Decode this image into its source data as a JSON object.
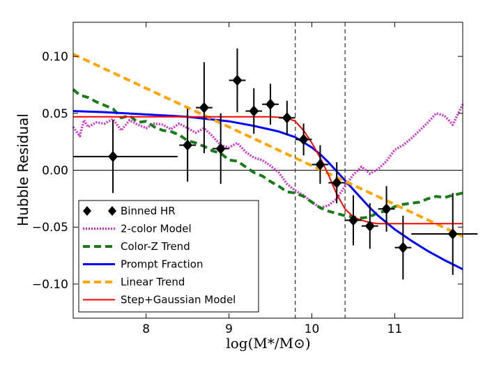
{
  "chart_data": {
    "type": "line",
    "xlabel": "log(M*/M⊙)",
    "ylabel": "Hubble Residual",
    "xlim": [
      7.12,
      11.82
    ],
    "ylim": [
      -0.13,
      0.13
    ],
    "x_ticks": [
      8,
      9,
      10,
      11
    ],
    "x_tick_labels": [
      "8",
      "9",
      "10",
      "11"
    ],
    "y_ticks": [
      0.1,
      0.05,
      0.0,
      -0.05,
      -0.1
    ],
    "y_tick_labels": [
      "0.10",
      "0.05",
      "0.00",
      "−0.05",
      "−0.10"
    ],
    "zero_line": 0,
    "vertical_lines": [
      9.8,
      10.4
    ],
    "legend_position": "lower-left",
    "binned_points": {
      "name": "Binned HR",
      "color": "#000000",
      "points": [
        {
          "x": 7.6,
          "y": 0.012,
          "xerr": [
            0.48,
            0.78
          ],
          "yerr": 0.032
        },
        {
          "x": 8.5,
          "y": 0.022,
          "xerr": [
            0.1,
            0.1
          ],
          "yerr": 0.032
        },
        {
          "x": 8.7,
          "y": 0.055,
          "xerr": [
            0.1,
            0.1
          ],
          "yerr": 0.04
        },
        {
          "x": 8.9,
          "y": 0.019,
          "xerr": [
            0.1,
            0.1
          ],
          "yerr": 0.031
        },
        {
          "x": 9.1,
          "y": 0.079,
          "xerr": [
            0.1,
            0.1
          ],
          "yerr": 0.028
        },
        {
          "x": 9.3,
          "y": 0.052,
          "xerr": [
            0.1,
            0.1
          ],
          "yerr": 0.02
        },
        {
          "x": 9.5,
          "y": 0.058,
          "xerr": [
            0.1,
            0.1
          ],
          "yerr": 0.018
        },
        {
          "x": 9.7,
          "y": 0.046,
          "xerr": [
            0.1,
            0.1
          ],
          "yerr": 0.015
        },
        {
          "x": 9.9,
          "y": 0.027,
          "xerr": [
            0.1,
            0.1
          ],
          "yerr": 0.014
        },
        {
          "x": 10.1,
          "y": 0.005,
          "xerr": [
            0.1,
            0.1
          ],
          "yerr": 0.017
        },
        {
          "x": 10.3,
          "y": -0.011,
          "xerr": [
            0.1,
            0.1
          ],
          "yerr": 0.018
        },
        {
          "x": 10.5,
          "y": -0.044,
          "xerr": [
            0.1,
            0.1
          ],
          "yerr": 0.022
        },
        {
          "x": 10.7,
          "y": -0.049,
          "xerr": [
            0.1,
            0.1
          ],
          "yerr": 0.02
        },
        {
          "x": 10.9,
          "y": -0.034,
          "xerr": [
            0.1,
            0.1
          ],
          "yerr": 0.02
        },
        {
          "x": 11.1,
          "y": -0.068,
          "xerr": [
            0.1,
            0.1
          ],
          "yerr": 0.028
        },
        {
          "x": 11.7,
          "y": -0.056,
          "xerr": [
            0.5,
            0.3
          ],
          "yerr": 0.036
        }
      ]
    },
    "series": [
      {
        "name": "2-color Model",
        "color": "#cc33cc",
        "style": "dotted",
        "x": [
          7.12,
          7.2,
          7.25,
          7.3,
          7.4,
          7.5,
          7.6,
          7.7,
          7.8,
          7.9,
          8.0,
          8.1,
          8.2,
          8.3,
          8.4,
          8.5,
          8.6,
          8.7,
          8.8,
          8.9,
          9.0,
          9.1,
          9.2,
          9.3,
          9.4,
          9.5,
          9.6,
          9.7,
          9.8,
          9.9,
          10.0,
          10.1,
          10.2,
          10.3,
          10.4,
          10.5,
          10.6,
          10.7,
          10.8,
          10.9,
          11.0,
          11.1,
          11.2,
          11.3,
          11.4,
          11.5,
          11.6,
          11.7,
          11.82
        ],
        "y": [
          0.038,
          0.03,
          0.044,
          0.038,
          0.042,
          0.041,
          0.045,
          0.035,
          0.044,
          0.04,
          0.037,
          0.041,
          0.04,
          0.036,
          0.041,
          0.037,
          0.033,
          0.037,
          0.03,
          0.022,
          0.02,
          0.024,
          0.016,
          0.011,
          0.009,
          0.004,
          -0.002,
          -0.012,
          -0.018,
          -0.022,
          -0.028,
          -0.033,
          -0.031,
          -0.025,
          -0.014,
          -0.004,
          0.003,
          -0.003,
          0.001,
          0.008,
          0.018,
          0.022,
          0.028,
          0.035,
          0.042,
          0.05,
          0.048,
          0.04,
          0.058
        ]
      },
      {
        "name": "Color-Z Trend",
        "color": "#1a7a1a",
        "style": "dashed",
        "x": [
          7.12,
          7.2,
          7.3,
          7.4,
          7.5,
          7.6,
          7.7,
          7.8,
          7.9,
          8.0,
          8.1,
          8.2,
          8.3,
          8.4,
          8.5,
          8.6,
          8.7,
          8.8,
          8.9,
          9.0,
          9.1,
          9.2,
          9.3,
          9.4,
          9.5,
          9.6,
          9.7,
          9.8,
          9.9,
          10.0,
          10.1,
          10.2,
          10.3,
          10.4,
          10.5,
          10.6,
          10.7,
          10.8,
          10.9,
          11.0,
          11.1,
          11.2,
          11.3,
          11.4,
          11.5,
          11.6,
          11.7,
          11.82
        ],
        "y": [
          0.071,
          0.066,
          0.064,
          0.06,
          0.057,
          0.054,
          0.046,
          0.048,
          0.042,
          0.043,
          0.038,
          0.035,
          0.034,
          0.031,
          0.026,
          0.024,
          0.021,
          0.017,
          0.015,
          0.009,
          0.008,
          0.003,
          -0.002,
          -0.005,
          -0.01,
          -0.014,
          -0.019,
          -0.02,
          -0.023,
          -0.028,
          -0.033,
          -0.036,
          -0.038,
          -0.04,
          -0.041,
          -0.042,
          -0.041,
          -0.037,
          -0.036,
          -0.032,
          -0.03,
          -0.029,
          -0.028,
          -0.025,
          -0.023,
          -0.024,
          -0.022,
          -0.02
        ]
      },
      {
        "name": "Prompt Fraction",
        "color": "#0000ff",
        "style": "solid",
        "x": [
          7.12,
          7.5,
          8.0,
          8.5,
          9.0,
          9.3,
          9.6,
          9.8,
          10.0,
          10.1,
          10.2,
          10.3,
          10.4,
          10.5,
          10.6,
          10.7,
          10.8,
          10.9,
          11.0,
          11.2,
          11.4,
          11.6,
          11.82
        ],
        "y": [
          0.052,
          0.051,
          0.049,
          0.047,
          0.043,
          0.039,
          0.034,
          0.029,
          0.02,
          0.014,
          0.007,
          -0.001,
          -0.009,
          -0.017,
          -0.025,
          -0.033,
          -0.04,
          -0.046,
          -0.052,
          -0.062,
          -0.071,
          -0.079,
          -0.087
        ]
      },
      {
        "name": "Linear Trend",
        "color": "#ffa500",
        "style": "dashed",
        "x": [
          7.12,
          11.82
        ],
        "y": [
          0.102,
          -0.058
        ]
      },
      {
        "name": "Step+Gaussian Model",
        "color": "#ff0000",
        "style": "solid",
        "x": [
          7.12,
          8.0,
          9.0,
          9.5,
          9.7,
          9.8,
          9.9,
          10.0,
          10.1,
          10.2,
          10.3,
          10.4,
          10.5,
          10.6,
          10.7,
          10.8,
          11.0,
          11.2,
          11.5,
          11.82
        ],
        "y": [
          0.047,
          0.047,
          0.047,
          0.047,
          0.046,
          0.043,
          0.035,
          0.024,
          0.011,
          -0.004,
          -0.021,
          -0.034,
          -0.041,
          -0.044,
          -0.046,
          -0.047,
          -0.047,
          -0.047,
          -0.047,
          -0.047
        ]
      }
    ]
  }
}
